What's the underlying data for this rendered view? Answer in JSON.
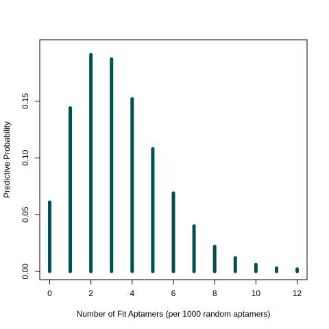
{
  "chart_data": {
    "type": "bar",
    "xlabel": "Number of Fit Aptamers (per 1000 random aptamers)",
    "ylabel": "Predictive Probability",
    "x": [
      0,
      1,
      2,
      3,
      4,
      5,
      6,
      7,
      8,
      9,
      10,
      11,
      12
    ],
    "values": [
      0.061,
      0.144,
      0.191,
      0.187,
      0.152,
      0.108,
      0.069,
      0.04,
      0.022,
      0.012,
      0.006,
      0.003,
      0.002
    ],
    "xlim": [
      -0.48,
      12.48
    ],
    "ylim": [
      0,
      0.198
    ],
    "xticks": [
      "0",
      "2",
      "4",
      "6",
      "8",
      "10",
      "12"
    ],
    "yticks": [
      "0.00",
      "0.05",
      "0.10",
      "0.15"
    ],
    "bar_color": "#044f4f",
    "grid": false
  }
}
